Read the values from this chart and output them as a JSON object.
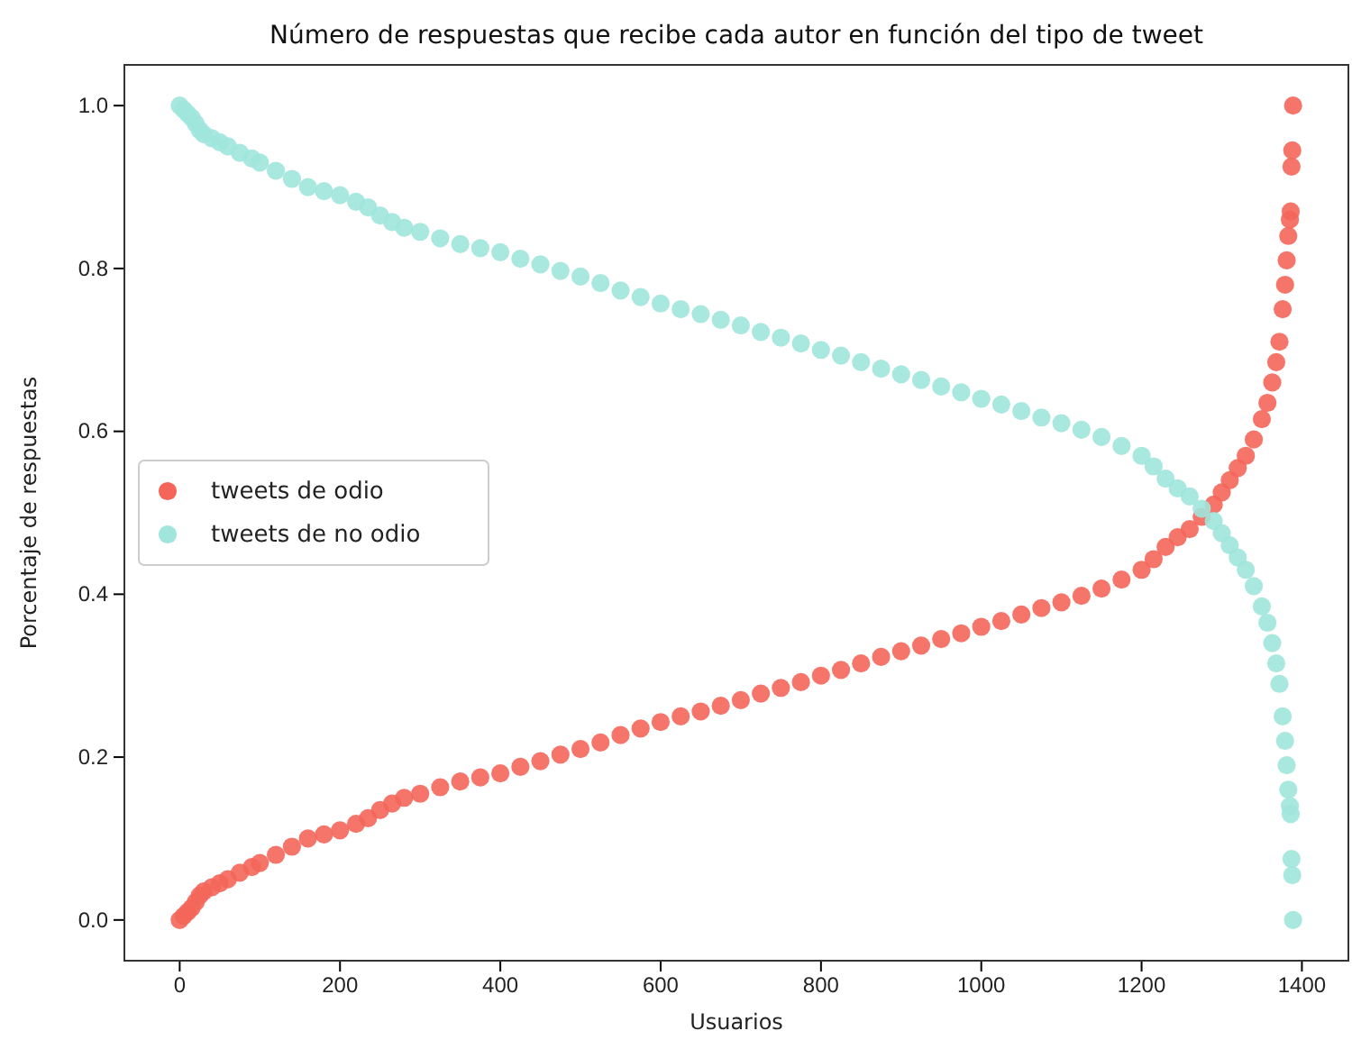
{
  "chart_data": {
    "type": "scatter",
    "title": "Número de respuestas que recibe cada autor en función del tipo de tweet",
    "xlabel": "Usuarios",
    "ylabel": "Porcentaje de respuestas",
    "xlim": [
      -69,
      1458
    ],
    "ylim": [
      -0.05,
      1.05
    ],
    "xticks": [
      0,
      200,
      400,
      600,
      800,
      1000,
      1200,
      1400
    ],
    "yticks": [
      {
        "value": 0,
        "label": "0.0"
      },
      {
        "value": 0.2,
        "label": "0.2"
      },
      {
        "value": 0.4,
        "label": "0.4"
      },
      {
        "value": 0.6,
        "label": "0.6"
      },
      {
        "value": 0.8,
        "label": "0.8"
      },
      {
        "value": 1,
        "label": "1.0"
      }
    ],
    "legend": "left",
    "marker": "circle",
    "grid": false,
    "series": [
      {
        "name": "tweets de odio",
        "color": "#f4665a",
        "x": [
          0,
          5,
          10,
          15,
          20,
          25,
          30,
          40,
          50,
          60,
          75,
          90,
          100,
          120,
          140,
          160,
          180,
          200,
          220,
          235,
          250,
          265,
          280,
          300,
          325,
          350,
          375,
          400,
          425,
          450,
          475,
          500,
          525,
          550,
          575,
          600,
          625,
          650,
          675,
          700,
          725,
          750,
          775,
          800,
          825,
          850,
          875,
          900,
          925,
          950,
          975,
          1000,
          1025,
          1050,
          1075,
          1100,
          1125,
          1150,
          1175,
          1200,
          1215,
          1230,
          1245,
          1260,
          1275,
          1290,
          1300,
          1310,
          1320,
          1330,
          1340,
          1350,
          1357,
          1363,
          1368,
          1372,
          1376,
          1379,
          1381,
          1383,
          1385,
          1386,
          1387,
          1388,
          1389
        ],
        "values": [
          0,
          0.005,
          0.01,
          0.015,
          0.022,
          0.03,
          0.035,
          0.04,
          0.045,
          0.05,
          0.058,
          0.065,
          0.07,
          0.08,
          0.09,
          0.1,
          0.105,
          0.11,
          0.118,
          0.125,
          0.135,
          0.143,
          0.15,
          0.155,
          0.163,
          0.17,
          0.175,
          0.18,
          0.188,
          0.195,
          0.203,
          0.21,
          0.218,
          0.227,
          0.235,
          0.243,
          0.25,
          0.256,
          0.263,
          0.27,
          0.278,
          0.285,
          0.292,
          0.3,
          0.307,
          0.315,
          0.323,
          0.33,
          0.337,
          0.345,
          0.352,
          0.36,
          0.367,
          0.375,
          0.383,
          0.39,
          0.398,
          0.407,
          0.418,
          0.43,
          0.443,
          0.458,
          0.47,
          0.48,
          0.495,
          0.51,
          0.525,
          0.54,
          0.555,
          0.57,
          0.59,
          0.615,
          0.635,
          0.66,
          0.685,
          0.71,
          0.75,
          0.78,
          0.81,
          0.84,
          0.86,
          0.87,
          0.925,
          0.945,
          1
        ]
      },
      {
        "name": "tweets de no odio",
        "color": "#a0e6dc",
        "x": [
          0,
          5,
          10,
          15,
          20,
          25,
          30,
          40,
          50,
          60,
          75,
          90,
          100,
          120,
          140,
          160,
          180,
          200,
          220,
          235,
          250,
          265,
          280,
          300,
          325,
          350,
          375,
          400,
          425,
          450,
          475,
          500,
          525,
          550,
          575,
          600,
          625,
          650,
          675,
          700,
          725,
          750,
          775,
          800,
          825,
          850,
          875,
          900,
          925,
          950,
          975,
          1000,
          1025,
          1050,
          1075,
          1100,
          1125,
          1150,
          1175,
          1200,
          1215,
          1230,
          1245,
          1260,
          1275,
          1290,
          1300,
          1310,
          1320,
          1330,
          1340,
          1350,
          1357,
          1363,
          1368,
          1372,
          1376,
          1379,
          1381,
          1383,
          1385,
          1386,
          1387,
          1388,
          1389
        ],
        "values": [
          1,
          0.995,
          0.99,
          0.985,
          0.978,
          0.97,
          0.965,
          0.96,
          0.955,
          0.95,
          0.942,
          0.935,
          0.93,
          0.92,
          0.91,
          0.9,
          0.895,
          0.89,
          0.882,
          0.875,
          0.865,
          0.857,
          0.85,
          0.845,
          0.837,
          0.83,
          0.825,
          0.82,
          0.812,
          0.805,
          0.797,
          0.79,
          0.782,
          0.773,
          0.765,
          0.757,
          0.75,
          0.744,
          0.737,
          0.73,
          0.722,
          0.715,
          0.708,
          0.7,
          0.693,
          0.685,
          0.677,
          0.67,
          0.663,
          0.655,
          0.648,
          0.64,
          0.633,
          0.625,
          0.617,
          0.61,
          0.602,
          0.593,
          0.582,
          0.57,
          0.557,
          0.542,
          0.53,
          0.52,
          0.505,
          0.49,
          0.475,
          0.46,
          0.445,
          0.43,
          0.41,
          0.385,
          0.365,
          0.34,
          0.315,
          0.29,
          0.25,
          0.22,
          0.19,
          0.16,
          0.14,
          0.13,
          0.075,
          0.055,
          0
        ]
      }
    ]
  }
}
